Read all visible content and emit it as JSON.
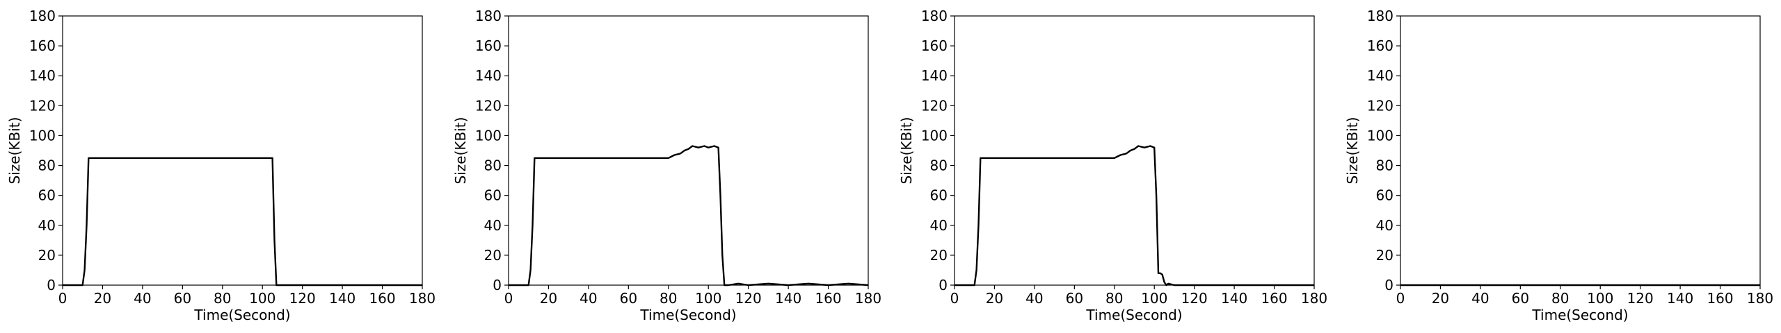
{
  "chart_data": [
    {
      "type": "line",
      "xlabel": "Time(Second)",
      "ylabel": "Size(KBit)",
      "xlim": [
        0,
        180
      ],
      "ylim": [
        0,
        180
      ],
      "xticks": [
        0,
        20,
        40,
        60,
        80,
        100,
        120,
        140,
        160,
        180
      ],
      "yticks": [
        0,
        20,
        40,
        60,
        80,
        100,
        120,
        140,
        160,
        180
      ],
      "grid": false,
      "series": [
        {
          "x": [
            0,
            10,
            11,
            12,
            13,
            20,
            30,
            40,
            50,
            60,
            70,
            80,
            90,
            100,
            104,
            105,
            106,
            107,
            110,
            120,
            140,
            160,
            180
          ],
          "y": [
            0,
            0,
            10,
            40,
            85,
            85,
            85,
            85,
            85,
            85,
            85,
            85,
            85,
            85,
            85,
            85,
            30,
            0,
            0,
            0,
            0,
            0,
            0
          ]
        }
      ]
    },
    {
      "type": "line",
      "xlabel": "Time(Second)",
      "ylabel": "Size(KBit)",
      "xlim": [
        0,
        180
      ],
      "ylim": [
        0,
        180
      ],
      "xticks": [
        0,
        20,
        40,
        60,
        80,
        100,
        120,
        140,
        160,
        180
      ],
      "yticks": [
        0,
        20,
        40,
        60,
        80,
        100,
        120,
        140,
        160,
        180
      ],
      "grid": false,
      "series": [
        {
          "x": [
            0,
            10,
            11,
            12,
            13,
            20,
            30,
            40,
            50,
            60,
            70,
            75,
            80,
            83,
            86,
            88,
            90,
            92,
            95,
            98,
            100,
            103,
            105,
            106,
            107,
            108,
            110,
            115,
            120,
            130,
            140,
            150,
            160,
            170,
            180
          ],
          "y": [
            0,
            0,
            10,
            40,
            85,
            85,
            85,
            85,
            85,
            85,
            85,
            85,
            85,
            87,
            88,
            90,
            91,
            93,
            92,
            93,
            92,
            93,
            92,
            60,
            20,
            0,
            0,
            1,
            0,
            1,
            0,
            1,
            0,
            1,
            0
          ]
        }
      ]
    },
    {
      "type": "line",
      "xlabel": "Time(Second)",
      "ylabel": "Size(KBit)",
      "xlim": [
        0,
        180
      ],
      "ylim": [
        0,
        180
      ],
      "xticks": [
        0,
        20,
        40,
        60,
        80,
        100,
        120,
        140,
        160,
        180
      ],
      "yticks": [
        0,
        20,
        40,
        60,
        80,
        100,
        120,
        140,
        160,
        180
      ],
      "grid": false,
      "series": [
        {
          "x": [
            0,
            10,
            11,
            12,
            13,
            20,
            30,
            40,
            50,
            60,
            70,
            75,
            80,
            83,
            86,
            88,
            90,
            92,
            95,
            98,
            100,
            101,
            102,
            103,
            104,
            105,
            106,
            107,
            110,
            120,
            140,
            160,
            180
          ],
          "y": [
            0,
            0,
            10,
            40,
            85,
            85,
            85,
            85,
            85,
            85,
            85,
            85,
            85,
            87,
            88,
            90,
            91,
            93,
            92,
            93,
            92,
            60,
            8,
            8,
            7,
            2,
            0,
            1,
            0,
            0,
            0,
            0,
            0
          ]
        }
      ]
    },
    {
      "type": "line",
      "xlabel": "Time(Second)",
      "ylabel": "Size(KBit)",
      "xlim": [
        0,
        180
      ],
      "ylim": [
        0,
        180
      ],
      "xticks": [
        0,
        20,
        40,
        60,
        80,
        100,
        120,
        140,
        160,
        180
      ],
      "yticks": [
        0,
        20,
        40,
        60,
        80,
        100,
        120,
        140,
        160,
        180
      ],
      "grid": false,
      "series": [
        {
          "x": [
            0,
            180
          ],
          "y": [
            0,
            0
          ]
        }
      ]
    }
  ]
}
